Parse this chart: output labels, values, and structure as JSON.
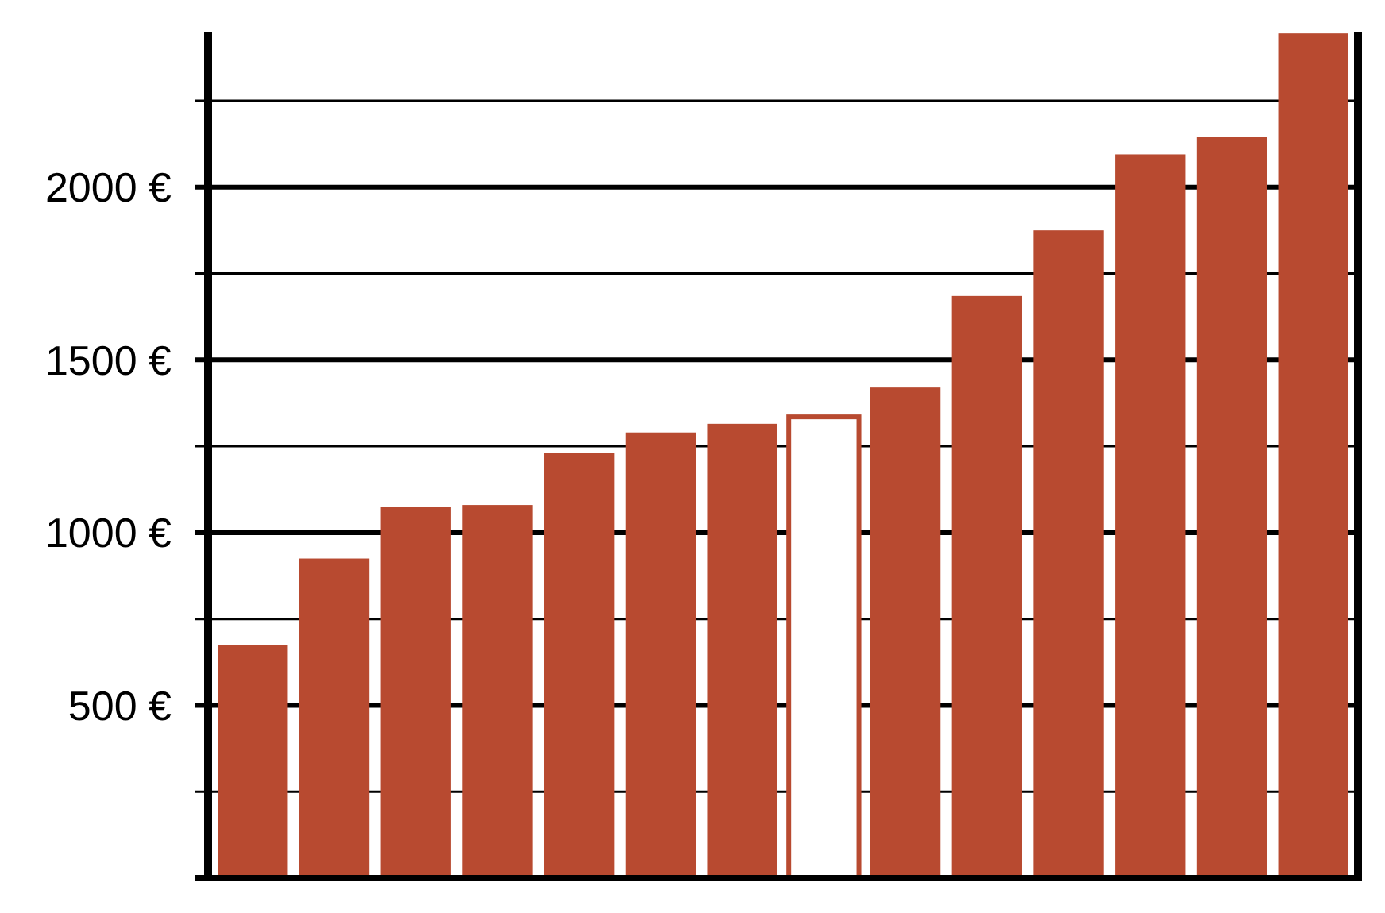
{
  "chart_data": {
    "type": "bar",
    "categories": [
      null,
      null,
      null,
      null,
      null,
      null,
      null,
      null,
      null,
      null,
      null,
      null,
      null,
      null
    ],
    "values": [
      675,
      925,
      1075,
      1080,
      1230,
      1290,
      1315,
      1335,
      1420,
      1685,
      1875,
      2095,
      2145,
      2445
    ],
    "color": "#b84a30",
    "colors": [
      "#b84a30",
      "#b84a30",
      "#b84a30",
      "#b84a30",
      "#b84a30",
      "#b84a30",
      "#b84a30",
      "#ffffff",
      "#b84a30",
      "#b84a30",
      "#b84a30",
      "#b84a30",
      "#b84a30",
      "#b84a30"
    ],
    "ylim": [
      0,
      2450
    ],
    "yticks": [
      {
        "value": 250,
        "label": null
      },
      {
        "value": 500,
        "label": "500 €"
      },
      {
        "value": 750,
        "label": null
      },
      {
        "value": 1000,
        "label": "1000 €"
      },
      {
        "value": 1250,
        "label": null
      },
      {
        "value": 1500,
        "label": "1500 €"
      },
      {
        "value": 1750,
        "label": null
      },
      {
        "value": 2000,
        "label": "2000 €"
      },
      {
        "value": 2250,
        "label": null
      }
    ],
    "grid": "y"
  }
}
